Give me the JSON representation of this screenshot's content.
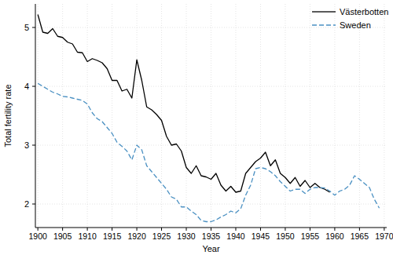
{
  "chart_data": {
    "type": "line",
    "x_label": "Year",
    "y_label": "Total fertility rate",
    "x": [
      1900,
      1901,
      1902,
      1903,
      1904,
      1905,
      1906,
      1907,
      1908,
      1909,
      1910,
      1911,
      1912,
      1913,
      1914,
      1915,
      1916,
      1917,
      1918,
      1919,
      1920,
      1921,
      1922,
      1923,
      1924,
      1925,
      1926,
      1927,
      1928,
      1929,
      1930,
      1931,
      1932,
      1933,
      1934,
      1935,
      1936,
      1937,
      1938,
      1939,
      1940,
      1941,
      1942,
      1943,
      1944,
      1945,
      1946,
      1947,
      1948,
      1949,
      1950,
      1951,
      1952,
      1953,
      1954,
      1955,
      1956,
      1957,
      1958,
      1959,
      1960,
      1961,
      1962,
      1963,
      1964,
      1965,
      1966,
      1967,
      1968,
      1969
    ],
    "series": [
      {
        "name": "Västerbotten",
        "color": "#000000",
        "line_style": "solid",
        "values": [
          5.22,
          4.92,
          4.9,
          4.98,
          4.85,
          4.83,
          4.75,
          4.72,
          4.58,
          4.57,
          4.42,
          4.47,
          4.44,
          4.4,
          4.3,
          4.1,
          4.1,
          3.92,
          3.95,
          3.8,
          4.45,
          4.1,
          3.65,
          3.6,
          3.52,
          3.42,
          3.15,
          3.0,
          3.02,
          2.9,
          2.62,
          2.52,
          2.65,
          2.48,
          2.46,
          2.42,
          2.52,
          2.32,
          2.22,
          2.3,
          2.2,
          2.22,
          2.52,
          2.62,
          2.72,
          2.78,
          2.88,
          2.65,
          2.75,
          2.52,
          2.45,
          2.35,
          2.45,
          2.3,
          2.4,
          2.28,
          2.35,
          2.28,
          2.25,
          2.2,
          null,
          null,
          null,
          null,
          null,
          null,
          null,
          null,
          null,
          null
        ]
      },
      {
        "name": "Sweden",
        "color": "#4a90c2",
        "line_style": "dashed",
        "values": [
          4.05,
          4.0,
          3.95,
          3.9,
          3.87,
          3.83,
          3.82,
          3.8,
          3.78,
          3.76,
          3.7,
          3.55,
          3.45,
          3.4,
          3.3,
          3.2,
          3.05,
          2.98,
          2.9,
          2.75,
          3.0,
          2.92,
          2.65,
          2.55,
          2.45,
          2.35,
          2.25,
          2.12,
          2.08,
          1.95,
          1.95,
          1.88,
          1.82,
          1.72,
          1.7,
          1.7,
          1.73,
          1.78,
          1.82,
          1.88,
          1.85,
          1.92,
          2.15,
          2.32,
          2.6,
          2.62,
          2.6,
          2.55,
          2.48,
          2.38,
          2.3,
          2.22,
          2.25,
          2.25,
          2.18,
          2.25,
          2.28,
          2.28,
          2.27,
          2.22,
          2.15,
          2.22,
          2.25,
          2.32,
          2.48,
          2.42,
          2.35,
          2.28,
          2.08,
          1.93
        ]
      }
    ],
    "xlim": [
      1899.5,
      1970.5
    ],
    "xticks": [
      1900,
      1905,
      1910,
      1915,
      1920,
      1925,
      1930,
      1935,
      1940,
      1945,
      1950,
      1955,
      1960,
      1965,
      1970
    ],
    "ylim": [
      1.6,
      5.4
    ],
    "yticks": [
      2,
      3,
      4,
      5
    ],
    "grid": true,
    "legend": "top-right"
  }
}
